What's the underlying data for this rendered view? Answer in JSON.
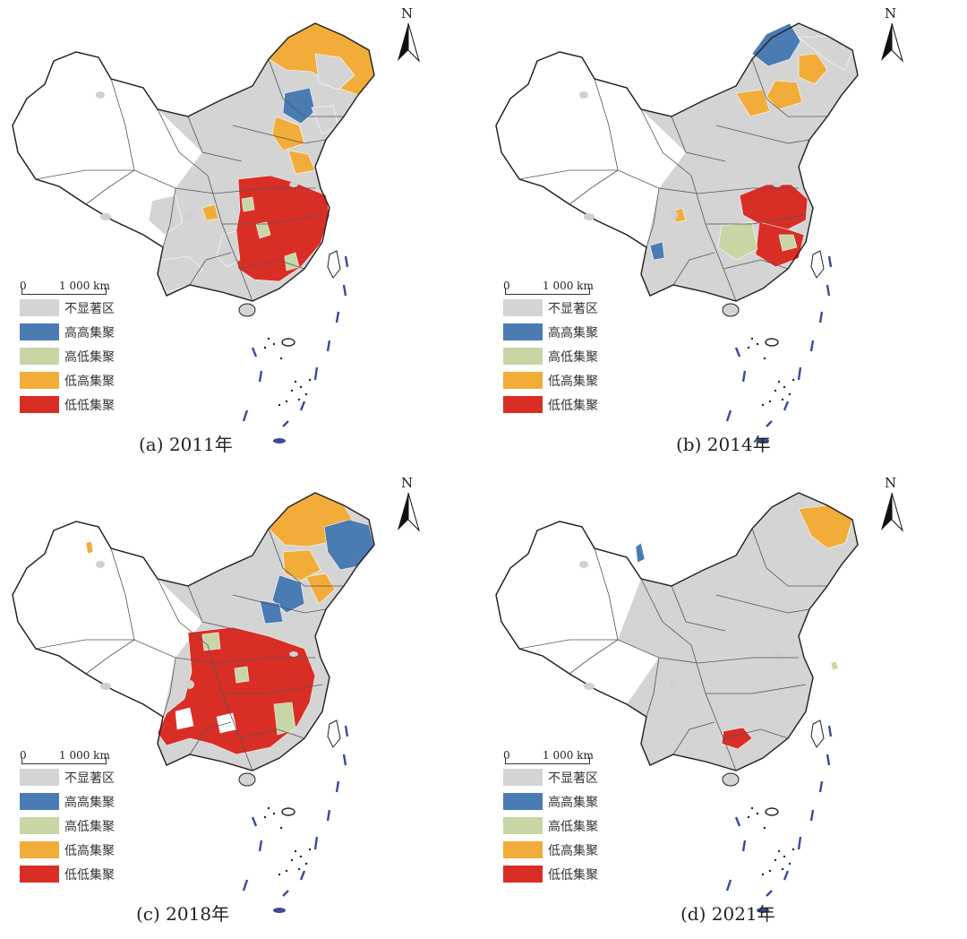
{
  "north_label": "N",
  "scale_zero": "0",
  "scale_text": "1 000  km",
  "legend": [
    {
      "label": "不显著区",
      "color": "#d4d4d4"
    },
    {
      "label": "高高集聚",
      "color": "#4a7cb3"
    },
    {
      "label": "高低集聚",
      "color": "#c7d6a4"
    },
    {
      "label": "低高集聚",
      "color": "#f2ac3a"
    },
    {
      "label": "低低集聚",
      "color": "#d92e26"
    }
  ],
  "panels": [
    {
      "caption": "(a) 2011年"
    },
    {
      "caption": "(b) 2014年"
    },
    {
      "caption": "(c) 2018年"
    },
    {
      "caption": "(d) 2021年"
    }
  ]
}
